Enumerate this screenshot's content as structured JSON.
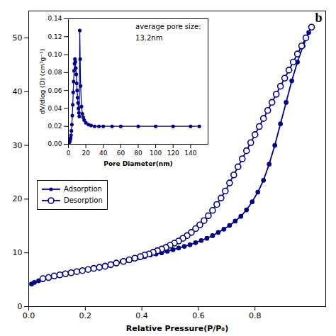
{
  "chart_data": [
    {
      "type": "line",
      "xlabel": "Relative Pressure(P/P₀)",
      "xlim": [
        0.0,
        1.05
      ],
      "xticks": [
        {
          "value": 0.0,
          "label": "0.0"
        },
        0.2,
        0.4,
        0.6,
        0.8
      ],
      "ylim": [
        0,
        55
      ],
      "yticks": [
        0,
        10,
        20,
        30,
        40,
        50
      ],
      "grid": false,
      "legend": "left",
      "annotations": [
        "b"
      ],
      "series": [
        {
          "name": "Adsorption",
          "color": "#00008B",
          "marker": "circle",
          "x": [
            0.01,
            0.02,
            0.035,
            0.05,
            0.07,
            0.09,
            0.11,
            0.13,
            0.15,
            0.17,
            0.19,
            0.21,
            0.23,
            0.25,
            0.27,
            0.29,
            0.31,
            0.33,
            0.35,
            0.37,
            0.39,
            0.41,
            0.43,
            0.45,
            0.47,
            0.49,
            0.51,
            0.53,
            0.55,
            0.57,
            0.59,
            0.61,
            0.63,
            0.65,
            0.67,
            0.69,
            0.71,
            0.73,
            0.75,
            0.77,
            0.79,
            0.81,
            0.83,
            0.85,
            0.87,
            0.89,
            0.91,
            0.93,
            0.95,
            0.97,
            0.99,
            1.0
          ],
          "values": [
            4.2,
            4.5,
            4.8,
            5.0,
            5.3,
            5.6,
            5.8,
            6.0,
            6.2,
            6.5,
            6.7,
            7.0,
            7.2,
            7.4,
            7.7,
            7.9,
            8.1,
            8.4,
            8.6,
            8.9,
            9.1,
            9.3,
            9.6,
            9.8,
            10.0,
            10.3,
            10.6,
            10.9,
            11.2,
            11.5,
            11.9,
            12.3,
            12.7,
            13.2,
            13.8,
            14.4,
            15.1,
            15.9,
            16.8,
            18.0,
            19.5,
            21.3,
            23.5,
            26.5,
            30.0,
            34.0,
            38.0,
            42.0,
            45.5,
            48.5,
            51.0,
            52.0
          ]
        },
        {
          "name": "Desorption",
          "color": "#00008B",
          "marker": "open_circle",
          "x": [
            1.0,
            0.98,
            0.965,
            0.95,
            0.935,
            0.92,
            0.905,
            0.89,
            0.875,
            0.86,
            0.845,
            0.83,
            0.815,
            0.8,
            0.785,
            0.77,
            0.755,
            0.74,
            0.725,
            0.71,
            0.695,
            0.68,
            0.665,
            0.65,
            0.635,
            0.62,
            0.605,
            0.59,
            0.575,
            0.56,
            0.545,
            0.53,
            0.515,
            0.5,
            0.485,
            0.47,
            0.455,
            0.44,
            0.425,
            0.41,
            0.395,
            0.375,
            0.355,
            0.335,
            0.31,
            0.29,
            0.27,
            0.25,
            0.23,
            0.21,
            0.19,
            0.17,
            0.15,
            0.13,
            0.11,
            0.09,
            0.07,
            0.05
          ],
          "values": [
            52.0,
            50.0,
            48.5,
            47.0,
            45.5,
            44.0,
            42.5,
            41.0,
            39.5,
            38.0,
            36.5,
            35.0,
            33.5,
            32.0,
            30.5,
            29.0,
            27.5,
            26.0,
            24.5,
            23.0,
            21.5,
            20.2,
            19.0,
            17.9,
            16.9,
            16.0,
            15.2,
            14.5,
            13.8,
            13.2,
            12.7,
            12.2,
            11.8,
            11.4,
            11.0,
            10.7,
            10.4,
            10.1,
            9.8,
            9.6,
            9.3,
            9.0,
            8.7,
            8.4,
            8.1,
            7.8,
            7.5,
            7.3,
            7.1,
            6.9,
            6.7,
            6.5,
            6.3,
            6.1,
            5.9,
            5.7,
            5.4,
            5.2
          ]
        }
      ]
    },
    {
      "type": "line",
      "xlabel": "Pore Diameter(nm)",
      "ylabel": "dV/dlog (D) (cm³g⁻¹)",
      "annotations": [
        "average pore size:",
        "13.2nm"
      ],
      "xlim": [
        0,
        160
      ],
      "xticks": [
        0,
        20,
        40,
        60,
        80,
        100,
        120,
        140
      ],
      "ylim": [
        0.0,
        0.14
      ],
      "yticks": [
        {
          "value": 0.0,
          "label": "0.00"
        },
        0.02,
        0.04,
        0.06,
        0.08,
        {
          "value": 0.1,
          "label": "0.10"
        },
        0.12,
        0.14
      ],
      "grid": false,
      "color": "#00008B",
      "marker": "circle",
      "x": [
        1.0,
        1.5,
        2.0,
        2.5,
        3.0,
        3.5,
        4.0,
        4.5,
        5.0,
        5.5,
        6.0,
        6.5,
        7.0,
        7.5,
        8.0,
        8.5,
        9.0,
        9.5,
        10.0,
        10.5,
        11.0,
        11.5,
        12.0,
        12.5,
        13.0,
        13.5,
        14.0,
        15.0,
        16.0,
        17.0,
        18.0,
        20.0,
        23.0,
        26.0,
        30.0,
        35.0,
        40.0,
        50.0,
        60.0,
        80.0,
        100.0,
        120.0,
        140.0,
        150.0
      ],
      "values": [
        0.002,
        0.003,
        0.005,
        0.007,
        0.01,
        0.015,
        0.022,
        0.032,
        0.044,
        0.058,
        0.07,
        0.082,
        0.09,
        0.095,
        0.092,
        0.085,
        0.078,
        0.068,
        0.06,
        0.052,
        0.046,
        0.04,
        0.035,
        0.031,
        0.127,
        0.095,
        0.065,
        0.042,
        0.034,
        0.03,
        0.027,
        0.024,
        0.022,
        0.021,
        0.02,
        0.02,
        0.02,
        0.02,
        0.02,
        0.02,
        0.02,
        0.02,
        0.02,
        0.02
      ]
    }
  ]
}
